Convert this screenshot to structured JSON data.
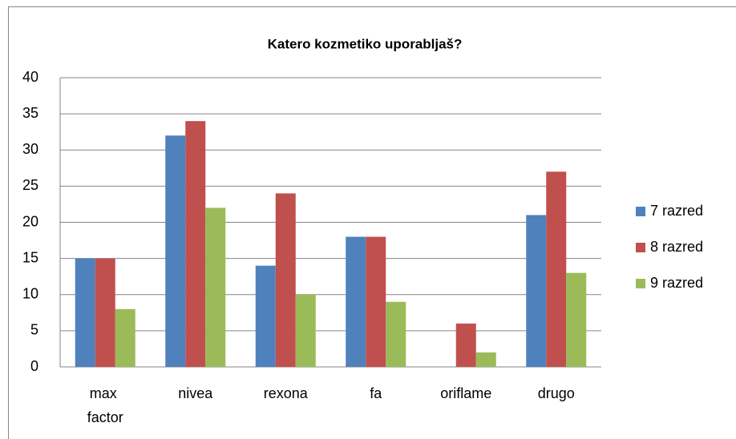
{
  "chart_data": {
    "type": "bar",
    "title": "Katero kozmetiko uporabljaš?",
    "categories": [
      "max factor",
      "nivea",
      "rexona",
      "fa",
      "oriflame",
      "drugo"
    ],
    "series": [
      {
        "name": "7 razred",
        "color": "#4f81bd",
        "values": [
          15,
          32,
          14,
          18,
          0,
          21
        ]
      },
      {
        "name": "8 razred",
        "color": "#c0504d",
        "values": [
          15,
          34,
          24,
          18,
          6,
          27
        ]
      },
      {
        "name": "9 razred",
        "color": "#9bbb59",
        "values": [
          8,
          22,
          10,
          9,
          2,
          13
        ]
      }
    ],
    "ylim": [
      0,
      40
    ],
    "yticks": [
      0,
      5,
      10,
      15,
      20,
      25,
      30,
      35,
      40
    ],
    "grid": true,
    "legend": "right"
  }
}
